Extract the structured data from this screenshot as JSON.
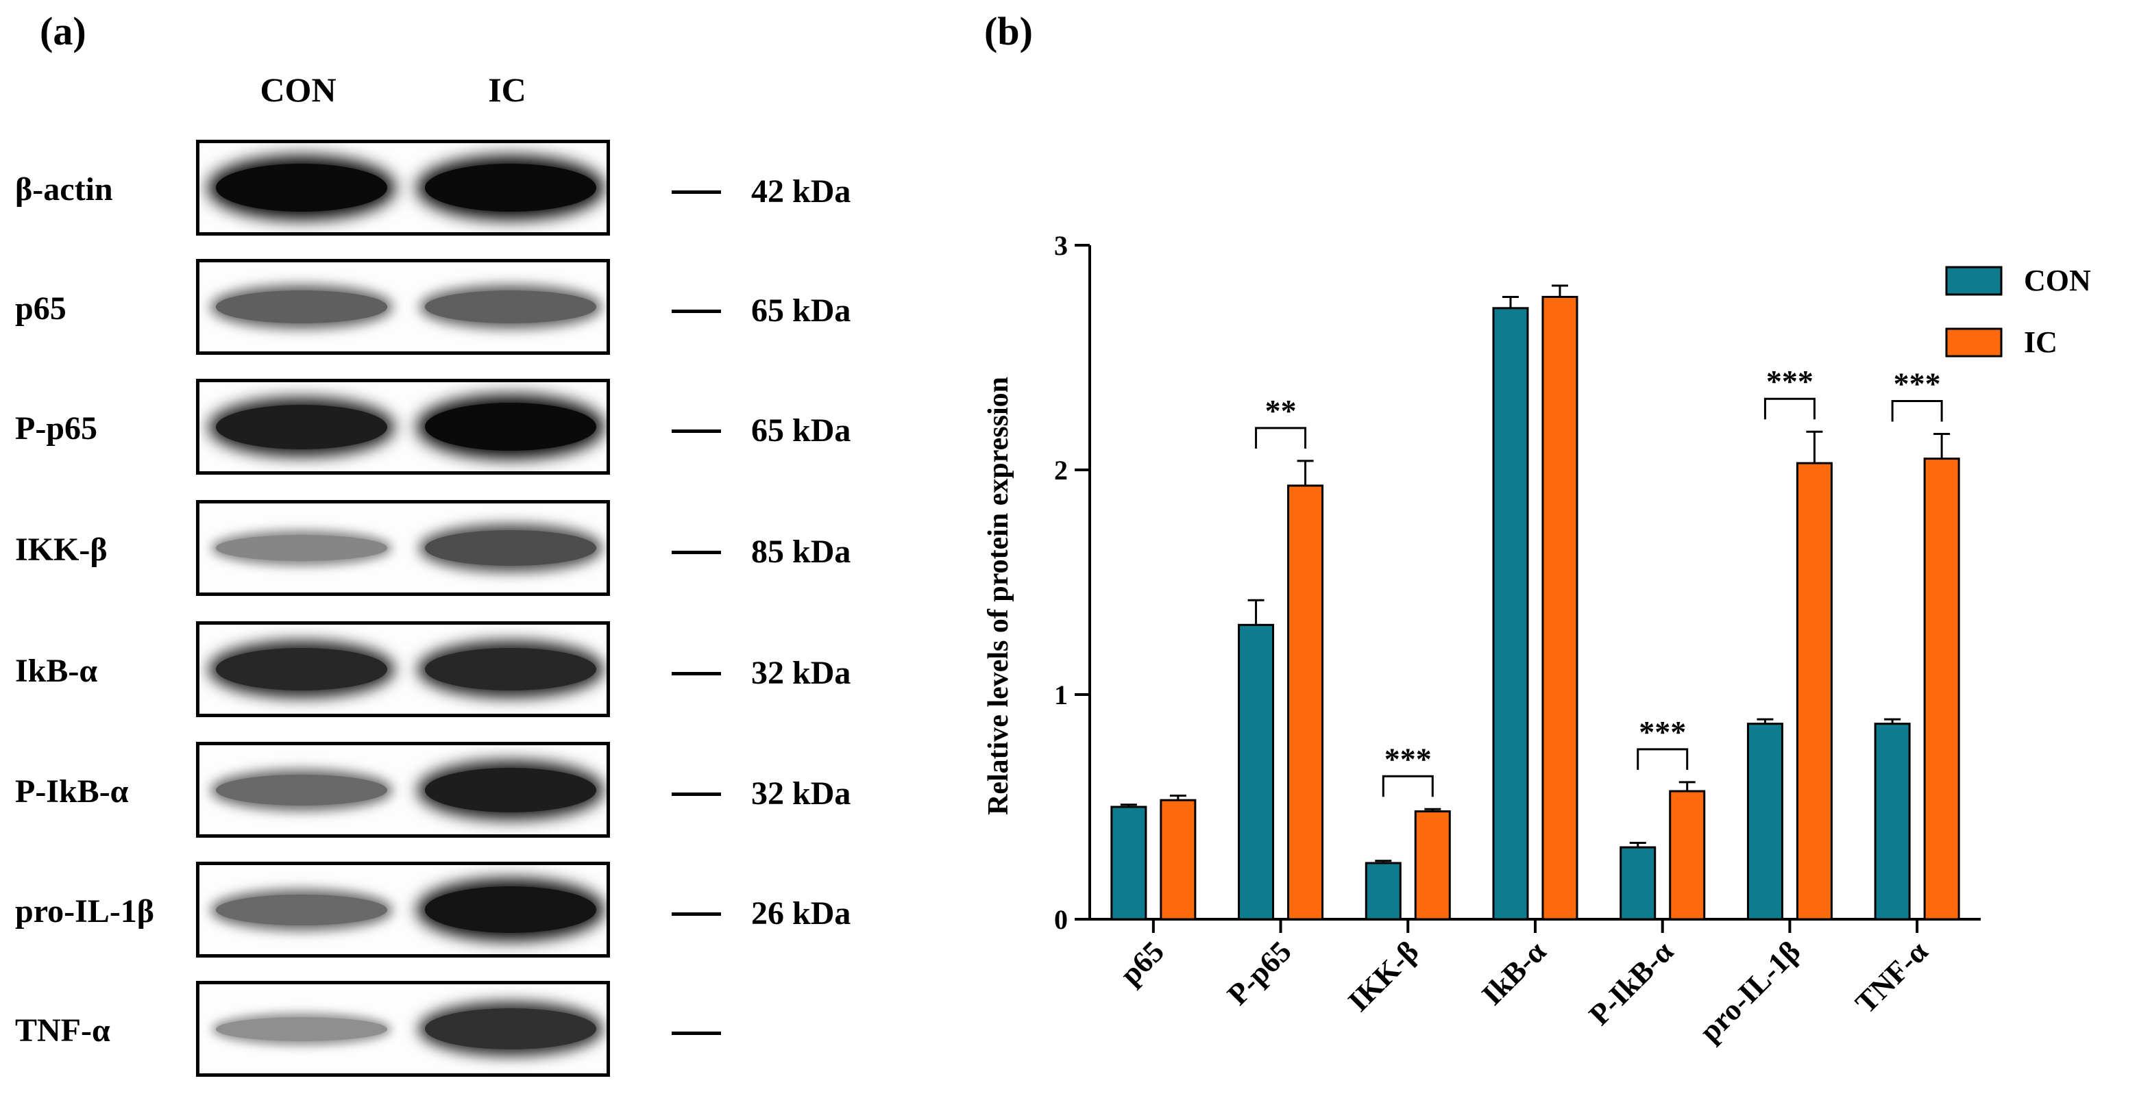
{
  "panel_a": {
    "label": "(a)",
    "lanes": [
      "CON",
      "IC"
    ],
    "blots": [
      {
        "protein": "β-actin",
        "kda": "42 kDa",
        "bands": [
          1.0,
          1.0
        ]
      },
      {
        "protein": "p65",
        "kda": "65 kDa",
        "bands": [
          0.55,
          0.55
        ]
      },
      {
        "protein": "P-p65",
        "kda": "65 kDa",
        "bands": [
          0.9,
          1.0
        ]
      },
      {
        "protein": "IKK-β",
        "kda": "85 kDa",
        "bands": [
          0.35,
          0.65
        ]
      },
      {
        "protein": "IkB-α",
        "kda": "32 kDa",
        "bands": [
          0.85,
          0.85
        ]
      },
      {
        "protein": "P-IkB-α",
        "kda": "32 kDa",
        "bands": [
          0.5,
          0.9
        ]
      },
      {
        "protein": "pro-IL-1β",
        "kda": "26 kDa",
        "bands": [
          0.5,
          0.95
        ]
      },
      {
        "protein": "TNF-α",
        "kda": "",
        "bands": [
          0.3,
          0.8
        ]
      }
    ]
  },
  "panel_b": {
    "label": "(b)"
  },
  "chart_data": {
    "type": "bar",
    "categories": [
      "p65",
      "P-p65",
      "IKK-β",
      "IkB-α",
      "P-IkB-α",
      "pro-IL-1β",
      "TNF-α"
    ],
    "series": [
      {
        "name": "CON",
        "color": "#0f7b8f",
        "values": [
          0.5,
          1.31,
          0.25,
          2.72,
          0.32,
          0.87,
          0.87
        ],
        "errors": [
          0.01,
          0.11,
          0.01,
          0.05,
          0.02,
          0.02,
          0.02
        ]
      },
      {
        "name": "IC",
        "color": "#ff6a0d",
        "values": [
          0.53,
          1.93,
          0.48,
          2.77,
          0.57,
          2.03,
          2.05
        ],
        "errors": [
          0.02,
          0.11,
          0.01,
          0.05,
          0.04,
          0.14,
          0.11
        ]
      }
    ],
    "significance": [
      "",
      "**",
      "***",
      "",
      "***",
      "***",
      "***"
    ],
    "xlabel": "",
    "ylabel": "Relative levels of protein expression",
    "ylim": [
      0,
      3
    ],
    "yticks": [
      0,
      1,
      2,
      3
    ],
    "grid": false,
    "legend_position": "top-right"
  }
}
